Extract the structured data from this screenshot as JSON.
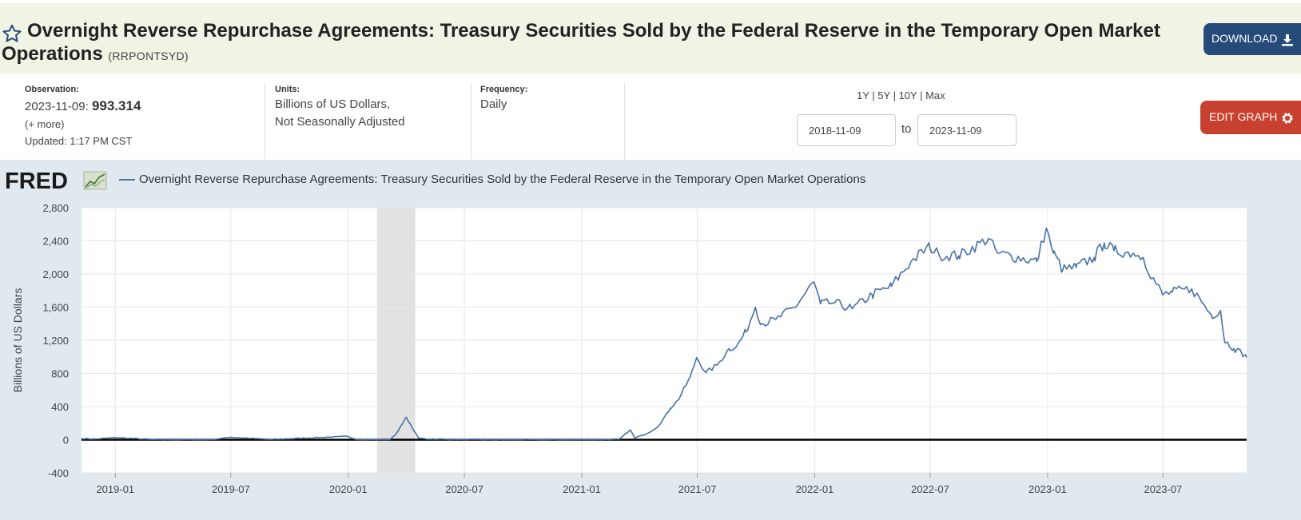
{
  "header": {
    "title": "Overnight Reverse Repurchase Agreements: Treasury Securities Sold by the Federal Reserve in the Temporary Open Market Operations",
    "series_id": "(RRPONTSYD)",
    "download_label": "DOWNLOAD",
    "edit_graph_label": "EDIT GRAPH"
  },
  "meta": {
    "observation_label": "Observation:",
    "observation_date": "2023-11-09:",
    "observation_value": "993.314",
    "more_label": "(+ more)",
    "updated": "Updated: 1:17 PM CST",
    "units_label": "Units:",
    "units_line1": "Billions of US Dollars,",
    "units_line2": "Not Seasonally Adjusted",
    "frequency_label": "Frequency:",
    "frequency_value": "Daily"
  },
  "range": {
    "links": [
      "1Y",
      "5Y",
      "10Y",
      "Max"
    ],
    "separator": " | ",
    "start": "2018-11-09",
    "end": "2023-11-09",
    "to_label": "to"
  },
  "colors": {
    "series": "#4572a7",
    "recession": "#e2e2e2",
    "plot_bg": "#ffffff",
    "chart_bg": "#e1e9f0"
  },
  "chart_data": {
    "type": "line",
    "title": "",
    "legend": "Overnight Reverse Repurchase Agreements: Treasury Securities Sold by the Federal Reserve in the Temporary Open Market Operations",
    "ylabel": "Billions of US Dollars",
    "xlabel": "",
    "ylim": [
      -400,
      2800
    ],
    "xlim": [
      "2018-11-09",
      "2023-11-09"
    ],
    "y_ticks": [
      -400,
      0,
      400,
      800,
      1200,
      1600,
      2000,
      2400,
      2800
    ],
    "x_ticks": [
      "2019-01",
      "2019-07",
      "2020-01",
      "2020-07",
      "2021-01",
      "2021-07",
      "2022-01",
      "2022-07",
      "2023-01",
      "2023-07"
    ],
    "recession": [
      "2020-02-15",
      "2020-04-15"
    ],
    "grid": true,
    "series": [
      {
        "name": "Overnight Reverse Repurchase Agreements: Treasury Securities Sold by the Federal Reserve in the Temporary Open Market Operations",
        "points": [
          [
            "2018-11-09",
            15
          ],
          [
            "2018-12-01",
            8
          ],
          [
            "2019-01-01",
            25
          ],
          [
            "2019-03-01",
            2
          ],
          [
            "2019-06-01",
            2
          ],
          [
            "2019-07-01",
            30
          ],
          [
            "2019-09-01",
            3
          ],
          [
            "2019-12-31",
            40
          ],
          [
            "2020-01-15",
            2
          ],
          [
            "2020-03-05",
            0
          ],
          [
            "2020-03-15",
            60
          ],
          [
            "2020-03-25",
            180
          ],
          [
            "2020-04-01",
            270
          ],
          [
            "2020-04-10",
            150
          ],
          [
            "2020-04-20",
            20
          ],
          [
            "2020-05-01",
            10
          ],
          [
            "2020-07-01",
            1
          ],
          [
            "2021-01-01",
            0
          ],
          [
            "2021-03-01",
            5
          ],
          [
            "2021-03-18",
            120
          ],
          [
            "2021-03-25",
            20
          ],
          [
            "2021-04-15",
            80
          ],
          [
            "2021-05-01",
            160
          ],
          [
            "2021-05-20",
            380
          ],
          [
            "2021-06-01",
            480
          ],
          [
            "2021-06-20",
            755
          ],
          [
            "2021-06-30",
            991
          ],
          [
            "2021-07-15",
            810
          ],
          [
            "2021-08-01",
            900
          ],
          [
            "2021-08-20",
            1100
          ],
          [
            "2021-09-01",
            1130
          ],
          [
            "2021-09-15",
            1300
          ],
          [
            "2021-09-30",
            1600
          ],
          [
            "2021-10-10",
            1400
          ],
          [
            "2021-11-01",
            1450
          ],
          [
            "2021-12-01",
            1600
          ],
          [
            "2021-12-31",
            1904
          ],
          [
            "2022-01-10",
            1640
          ],
          [
            "2022-02-01",
            1650
          ],
          [
            "2022-03-01",
            1580
          ],
          [
            "2022-04-01",
            1750
          ],
          [
            "2022-05-01",
            1850
          ],
          [
            "2022-06-01",
            2150
          ],
          [
            "2022-06-30",
            2330
          ],
          [
            "2022-07-15",
            2230
          ],
          [
            "2022-08-15",
            2220
          ],
          [
            "2022-09-30",
            2425
          ],
          [
            "2022-10-15",
            2250
          ],
          [
            "2022-11-15",
            2200
          ],
          [
            "2022-12-15",
            2150
          ],
          [
            "2022-12-30",
            2554
          ],
          [
            "2023-01-10",
            2250
          ],
          [
            "2023-01-25",
            2050
          ],
          [
            "2023-02-15",
            2080
          ],
          [
            "2023-03-15",
            2200
          ],
          [
            "2023-03-31",
            2375
          ],
          [
            "2023-04-15",
            2280
          ],
          [
            "2023-05-15",
            2250
          ],
          [
            "2023-05-31",
            2200
          ],
          [
            "2023-06-15",
            1950
          ],
          [
            "2023-06-30",
            1750
          ],
          [
            "2023-07-15",
            1780
          ],
          [
            "2023-08-15",
            1820
          ],
          [
            "2023-09-01",
            1650
          ],
          [
            "2023-09-15",
            1500
          ],
          [
            "2023-09-29",
            1560
          ],
          [
            "2023-10-05",
            1200
          ],
          [
            "2023-10-20",
            1100
          ],
          [
            "2023-11-01",
            1050
          ],
          [
            "2023-11-09",
            993
          ]
        ]
      }
    ]
  }
}
